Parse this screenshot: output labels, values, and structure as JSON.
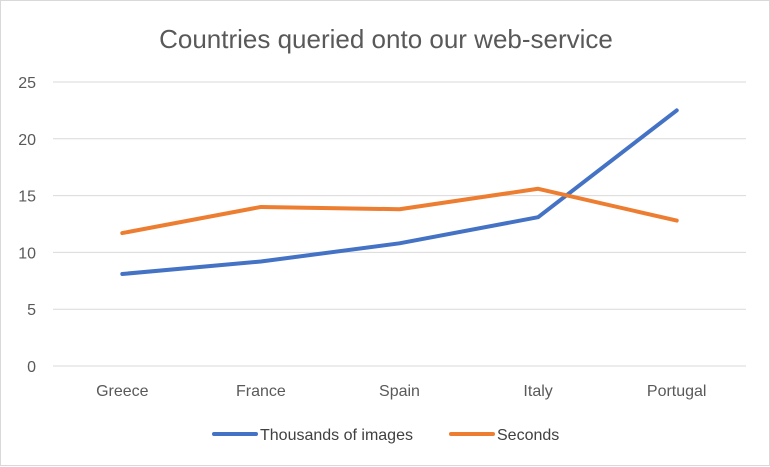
{
  "chart_data": {
    "type": "line",
    "title": "Countries queried onto our web-service",
    "categories": [
      "Greece",
      "France",
      "Spain",
      "Italy",
      "Portugal"
    ],
    "series": [
      {
        "name": "Thousands of images",
        "values": [
          8.1,
          9.2,
          10.8,
          13.1,
          22.5
        ],
        "color": "#4472c4"
      },
      {
        "name": "Seconds",
        "values": [
          11.7,
          14.0,
          13.8,
          15.6,
          12.8
        ],
        "color": "#ed7d31"
      }
    ],
    "ylim": [
      0,
      25
    ],
    "yticks": [
      "0",
      "5",
      "10",
      "15",
      "20",
      "25"
    ],
    "grid": "horizontal",
    "legend_position": "bottom"
  }
}
